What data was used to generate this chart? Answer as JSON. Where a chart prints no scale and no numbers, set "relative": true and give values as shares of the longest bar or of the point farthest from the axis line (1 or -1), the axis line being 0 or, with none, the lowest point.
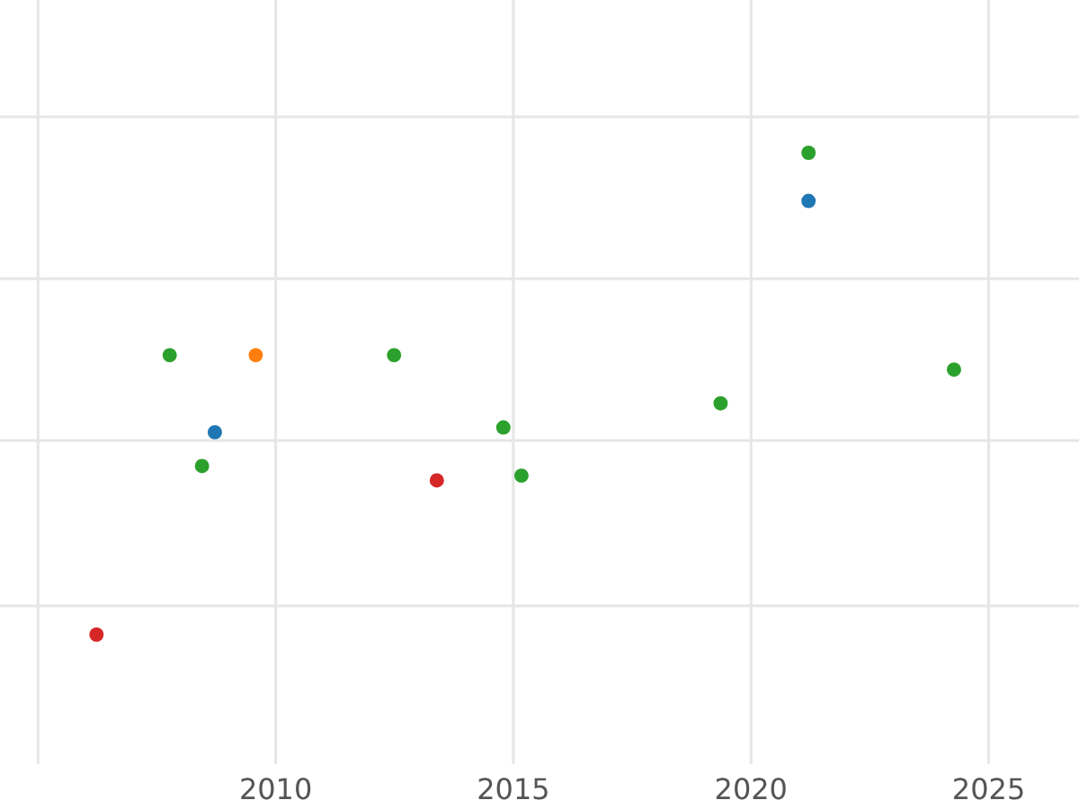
{
  "chart_data": {
    "type": "scatter",
    "relative": true,
    "grid": true,
    "marker": "circle",
    "xlim": [
      2004.2,
      2026.9
    ],
    "xticks": [
      {
        "value": 2005,
        "label": null
      },
      2010,
      2015,
      2020,
      2025
    ],
    "series": [
      {
        "color": "#2ca02c",
        "x": [
          2007.77,
          2008.45,
          2012.49,
          2014.79,
          2015.17,
          2019.36,
          2021.21,
          2024.27
        ],
        "values": [
          0.58,
          0.35,
          0.58,
          0.43,
          0.33,
          0.48,
          1,
          0.55
        ]
      },
      {
        "color": "#1f77b4",
        "x": [
          2008.72,
          2021.21
        ],
        "values": [
          0.42,
          0.9
        ]
      },
      {
        "color": "#ff7f0e",
        "x": [
          2009.58
        ],
        "values": [
          0.58
        ]
      },
      {
        "color": "#d62728",
        "x": [
          2006.23,
          2013.39
        ],
        "values": [
          0,
          0.32
        ]
      }
    ]
  }
}
